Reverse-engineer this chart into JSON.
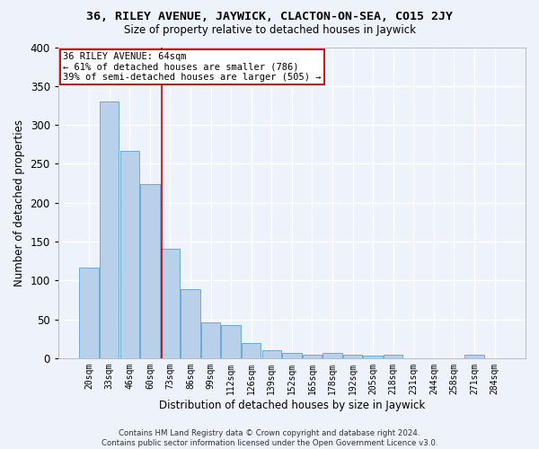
{
  "title": "36, RILEY AVENUE, JAYWICK, CLACTON-ON-SEA, CO15 2JY",
  "subtitle": "Size of property relative to detached houses in Jaywick",
  "xlabel": "Distribution of detached houses by size in Jaywick",
  "ylabel": "Number of detached properties",
  "footer1": "Contains HM Land Registry data © Crown copyright and database right 2024.",
  "footer2": "Contains public sector information licensed under the Open Government Licence v3.0.",
  "categories": [
    "20sqm",
    "33sqm",
    "46sqm",
    "60sqm",
    "73sqm",
    "86sqm",
    "99sqm",
    "112sqm",
    "126sqm",
    "139sqm",
    "152sqm",
    "165sqm",
    "178sqm",
    "192sqm",
    "205sqm",
    "218sqm",
    "231sqm",
    "244sqm",
    "258sqm",
    "271sqm",
    "284sqm"
  ],
  "values": [
    117,
    330,
    267,
    224,
    141,
    89,
    46,
    42,
    19,
    10,
    7,
    5,
    7,
    4,
    3,
    4,
    0,
    0,
    0,
    5,
    0
  ],
  "bar_color": "#b8d0ea",
  "bar_edge_color": "#6aaad4",
  "background_color": "#eef2fa",
  "grid_color": "#ffffff",
  "annotation_text": "36 RILEY AVENUE: 64sqm\n← 61% of detached houses are smaller (786)\n39% of semi-detached houses are larger (505) →",
  "annotation_box_color": "#ffffff",
  "annotation_box_edge": "#cc0000",
  "vline_color": "#cc0000",
  "vline_x_index": 3.6,
  "ylim": [
    0,
    400
  ],
  "yticks": [
    0,
    50,
    100,
    150,
    200,
    250,
    300,
    350,
    400
  ]
}
